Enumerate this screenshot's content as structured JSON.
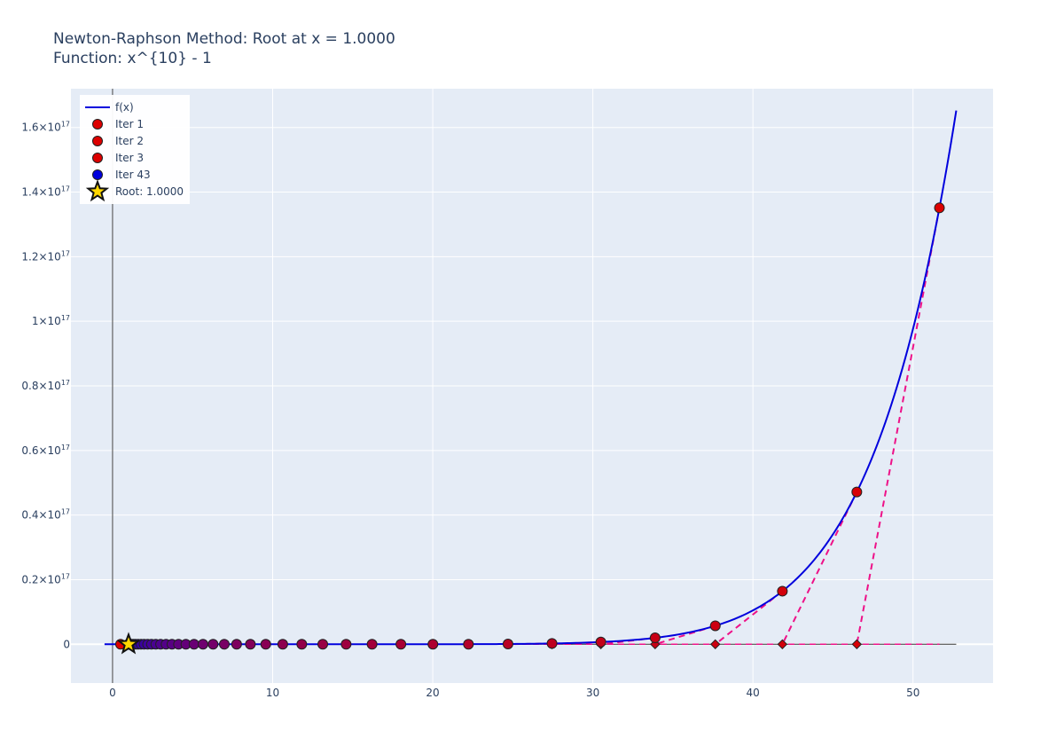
{
  "chart_data": {
    "type": "scatter",
    "title": "Newton-Raphson Method: Root at x = 1.0000",
    "subtitle": "Function: x^{10} - 1",
    "xlim": [
      -2.6,
      55
    ],
    "ylim": [
      -1.2e+16,
      1.72e+17
    ],
    "x_ticks": [
      0,
      10,
      20,
      30,
      40,
      50
    ],
    "x_tick_labels": [
      "0",
      "10",
      "20",
      "30",
      "40",
      "50"
    ],
    "y_ticks": [
      0,
      2e+16,
      4e+16,
      6e+16,
      8e+16,
      1e+17,
      1.2e+17,
      1.4e+17,
      1.6e+17
    ],
    "y_tick_labels": [
      {
        "mant": "0",
        "exp": ""
      },
      {
        "mant": "0.2×10",
        "exp": "17"
      },
      {
        "mant": "0.4×10",
        "exp": "17"
      },
      {
        "mant": "0.6×10",
        "exp": "17"
      },
      {
        "mant": "0.8×10",
        "exp": "17"
      },
      {
        "mant": "1×10",
        "exp": "17"
      },
      {
        "mant": "1.2×10",
        "exp": "17"
      },
      {
        "mant": "1.4×10",
        "exp": "17"
      },
      {
        "mant": "1.6×10",
        "exp": "17"
      }
    ],
    "grid": true,
    "legend_position": "top-left",
    "function_range": [
      -0.5,
      52.7
    ],
    "curve_color": "#0000dd",
    "tangent_color": "#ee1188",
    "first_iter_color": "#dd0000",
    "last_iter_color": "#0000dd",
    "root_color": "#ffd700",
    "iterations_x": [
      51.65,
      46.49,
      41.84,
      37.65,
      33.89,
      30.5,
      27.45,
      24.7,
      22.23,
      20.01,
      18.01,
      16.21,
      14.59,
      13.13,
      11.82,
      10.63,
      9.57,
      8.61,
      7.75,
      6.98,
      6.28,
      5.65,
      5.09,
      4.58,
      4.12,
      3.71,
      3.34,
      3.0,
      2.7,
      2.43,
      2.19,
      1.97,
      1.78,
      1.6,
      1.44,
      1.31,
      1.19,
      1.09,
      1.03,
      1.004,
      1.0001,
      1.0,
      1.0
    ],
    "extra_point_x": 0.5,
    "root_x": 1.0,
    "legend": [
      {
        "label": "f(x)",
        "kind": "line",
        "color": "#0000dd"
      },
      {
        "label": "Iter 1",
        "kind": "marker",
        "color": "#dd0000"
      },
      {
        "label": "Iter 2",
        "kind": "marker",
        "color": "#dd0000"
      },
      {
        "label": "Iter 3",
        "kind": "marker",
        "color": "#dd0000"
      },
      {
        "label": "Iter 43",
        "kind": "marker",
        "color": "#0000dd"
      },
      {
        "label": "Root: 1.0000",
        "kind": "star",
        "color": "#ffd700"
      }
    ]
  }
}
